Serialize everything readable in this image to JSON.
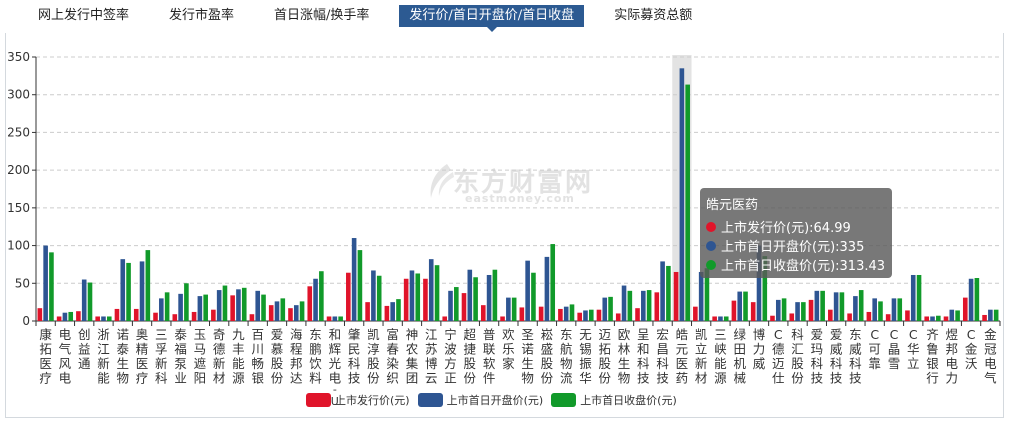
{
  "tabs": [
    {
      "label": "网上发行中签率",
      "active": false
    },
    {
      "label": "发行市盈率",
      "active": false
    },
    {
      "label": "首日涨幅/换手率",
      "active": false
    },
    {
      "label": "发行价/首日开盘价/首日收盘",
      "active": true
    },
    {
      "label": "实际募资总额",
      "active": false
    }
  ],
  "watermark": {
    "cn": "东方财富网",
    "en": "eastmoney.com"
  },
  "colors": {
    "issue": "#e0142a",
    "open": "#2e5592",
    "close": "#119a2a",
    "grid": "#cccccc",
    "axis": "#333333",
    "highlight": "#e3e3e3"
  },
  "tooltip": {
    "title": "皓元医药",
    "rows": [
      {
        "label": "上市发行价(元):64.99",
        "color": "#e0142a"
      },
      {
        "label": "上市首日开盘价(元):335",
        "color": "#2e5592"
      },
      {
        "label": "上市首日收盘价(元):313.43",
        "color": "#119a2a"
      }
    ]
  },
  "legend": [
    {
      "label": "上市发行价(元)",
      "color": "#e0142a"
    },
    {
      "label": "上市首日开盘价(元)",
      "color": "#2e5592"
    },
    {
      "label": "上市首日收盘价(元)",
      "color": "#119a2a"
    }
  ],
  "chart_data": {
    "type": "bar",
    "title": "",
    "xlabel": "",
    "ylabel": "",
    "ylim": [
      0,
      350
    ],
    "yticks": [
      0,
      50,
      100,
      150,
      200,
      250,
      300,
      350
    ],
    "grid": true,
    "legend_position": "bottom",
    "highlighted_category": "皓元医药",
    "categories": [
      "康拓医疗",
      "电气风电",
      "创益通",
      "浙江新能",
      "诺泰生物",
      "奥精医疗",
      "三孚新科",
      "泰福泵业",
      "玉马遮阳",
      "奇德新材",
      "九丰能源",
      "百川畅银",
      "爱慕股份",
      "海程邦达",
      "东鹏饮料",
      "和辉光电-U",
      "肇民科技",
      "凯淳股份",
      "富春染织",
      "神农集团",
      "江苏博云",
      "宁波方正",
      "超捷股份",
      "普联软件",
      "欢乐家",
      "圣诺生物",
      "崧盛股份",
      "东航物流",
      "无锡振华",
      "迈拓股份",
      "欧林生物",
      "呈和科技",
      "宏昌科技",
      "皓元医药",
      "凯立新材",
      "三峡能源",
      "绿田机械",
      "博力威",
      "C德迈仕",
      "科汇股份",
      "爱玛科技",
      "爱威科技",
      "东威科技",
      "C可靠",
      "C晶雪",
      "C华立",
      "齐鲁银行",
      "煜邦电力",
      "C金沃",
      "金冠电气"
    ],
    "series": [
      {
        "name": "上市发行价(元)",
        "color": "#e0142a",
        "values": [
          17,
          6,
          13,
          6,
          16,
          16,
          11,
          9,
          12,
          15,
          34,
          9,
          21,
          17,
          46,
          6,
          64,
          25,
          20,
          56,
          56,
          6,
          37,
          21,
          6,
          18,
          19,
          16,
          11,
          15,
          10,
          17,
          38,
          64.99,
          19,
          6,
          27,
          25,
          7,
          10,
          28,
          15,
          10,
          12,
          9,
          14,
          6,
          6,
          31,
          8
        ]
      },
      {
        "name": "上市首日开盘价(元)",
        "color": "#2e5592",
        "values": [
          100,
          11,
          55,
          6,
          82,
          79,
          30,
          36,
          33,
          41,
          42,
          40,
          26,
          21,
          56,
          6,
          110,
          67,
          25,
          67,
          82,
          40,
          68,
          61,
          31,
          80,
          85,
          19,
          14,
          31,
          47,
          40,
          79,
          335,
          65,
          6,
          39,
          100,
          28,
          25,
          40,
          38,
          33,
          30,
          30,
          61,
          6,
          15,
          56,
          15
        ]
      },
      {
        "name": "上市首日收盘价(元)",
        "color": "#119a2a",
        "values": [
          91,
          12,
          51,
          6,
          77,
          94,
          38,
          50,
          35,
          47,
          44,
          35,
          30,
          26,
          66,
          6,
          94,
          60,
          29,
          63,
          74,
          45,
          58,
          68,
          31,
          64,
          102,
          22,
          15,
          32,
          40,
          41,
          73,
          313.43,
          70,
          6,
          39,
          86,
          30,
          25,
          40,
          38,
          41,
          26,
          30,
          61,
          7,
          14,
          57,
          15
        ]
      }
    ]
  }
}
